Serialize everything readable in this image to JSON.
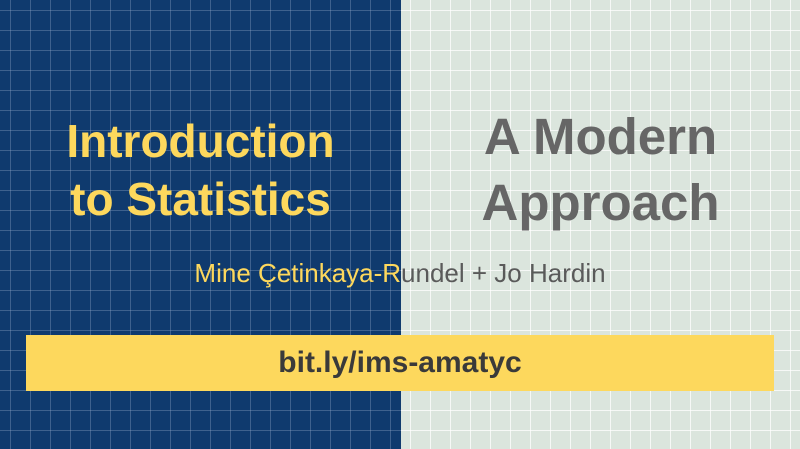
{
  "slide": {
    "title_left_line1": "Introduction",
    "title_left_line2": "to Statistics",
    "title_right_line1": "A Modern",
    "title_right_line2": "Approach",
    "authors": "Mine Çetinkaya-Rundel + Jo Hardin",
    "link": "bit.ly/ims-amatyc"
  },
  "colors": {
    "left_background": "#0f3a6e",
    "right_background": "#dbe5dd",
    "accent_yellow": "#fdd85d",
    "right_title_gray": "#666666",
    "link_text": "#3a3a3a"
  }
}
